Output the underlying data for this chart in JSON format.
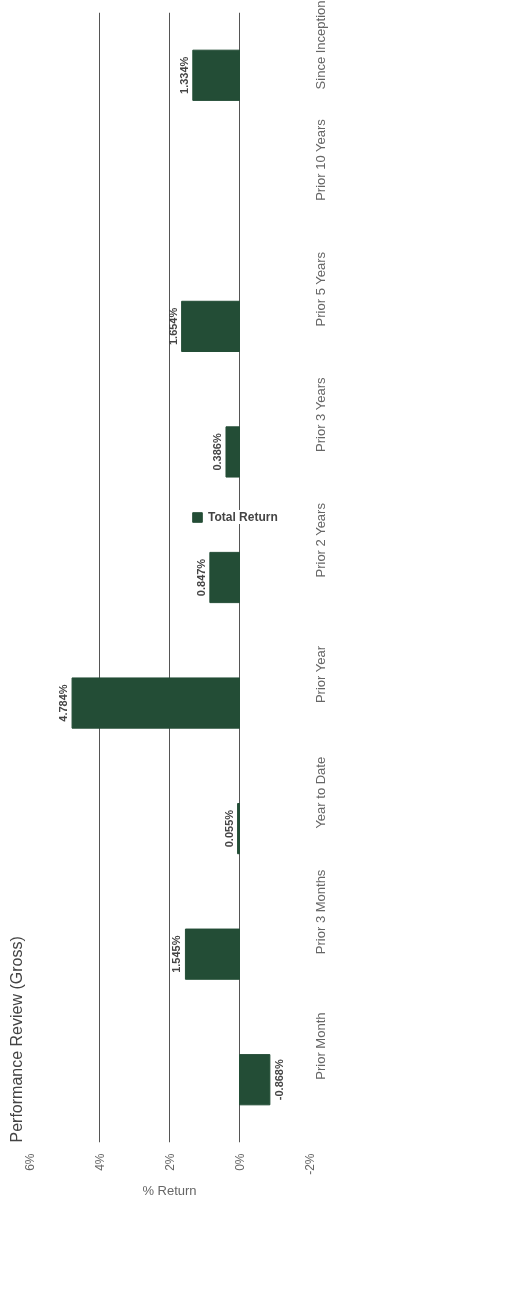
{
  "chart_data": {
    "type": "bar",
    "orientation": "horizontal",
    "title": "Performance Review (Gross)",
    "xlabel": "% Return",
    "categories": [
      "Since Inception",
      "Prior 10 Years",
      "Prior 5 Years",
      "Prior 3 Years",
      "Prior 2 Years",
      "Prior Year",
      "Year to Date",
      "Prior 3 Months",
      "Prior Month"
    ],
    "series": [
      {
        "name": "Total Return",
        "color": "#234d36",
        "values": [
          1.334,
          null,
          1.654,
          0.386,
          0.847,
          4.784,
          0.055,
          1.545,
          -0.868
        ],
        "value_labels": [
          "1.334%",
          null,
          "1.654%",
          "0.386%",
          "0.847%",
          "4.784%",
          "0.055%",
          "1.545%",
          "-0.868%"
        ]
      }
    ],
    "xlim": [
      6,
      -2
    ],
    "xticks": [
      {
        "value": 6,
        "label": "6%"
      },
      {
        "value": 4,
        "label": "4%"
      },
      {
        "value": 2,
        "label": "2%"
      },
      {
        "value": 0,
        "label": "0%"
      },
      {
        "value": -2,
        "label": "-2%"
      }
    ],
    "grid": "x",
    "legend": "right"
  }
}
